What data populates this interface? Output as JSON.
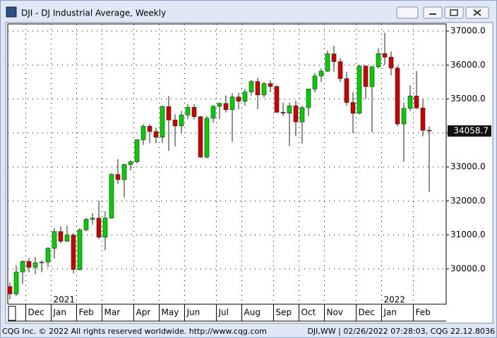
{
  "window": {
    "title": "DJI - DJ Industrial Average, Weekly",
    "footer_left": "CQG Inc. © 2022 All rights reserved worldwide. http://www.cqg.com",
    "footer_right": "DJI,WW | 02/26/2022 07:28:03, CQG 22.12.8036"
  },
  "chart_data": {
    "type": "candlestick",
    "categories": [
      null,
      null,
      null,
      "Dec",
      null,
      null,
      null,
      "Jan",
      null,
      null,
      null,
      "Feb",
      null,
      null,
      null,
      "Mar",
      null,
      null,
      null,
      null,
      "Apr",
      null,
      null,
      null,
      "May",
      null,
      null,
      null,
      "Jun",
      null,
      null,
      null,
      null,
      "Jul",
      null,
      null,
      null,
      "Aug",
      null,
      null,
      null,
      null,
      "Sep",
      null,
      null,
      null,
      "Oct",
      null,
      null,
      null,
      "Nov",
      null,
      null,
      null,
      null,
      "Dec",
      null,
      null,
      null,
      "Jan",
      null,
      null,
      null,
      null,
      "Feb",
      null,
      null
    ],
    "year_labels": [
      null,
      null,
      null,
      null,
      null,
      null,
      null,
      "2021",
      null,
      null,
      null,
      null,
      null,
      null,
      null,
      null,
      null,
      null,
      null,
      null,
      null,
      null,
      null,
      null,
      null,
      null,
      null,
      null,
      null,
      null,
      null,
      null,
      null,
      null,
      null,
      null,
      null,
      null,
      null,
      null,
      null,
      null,
      null,
      null,
      null,
      null,
      null,
      null,
      null,
      null,
      null,
      null,
      null,
      null,
      null,
      null,
      null,
      null,
      null,
      "2022",
      null,
      null,
      null,
      null,
      null,
      null,
      null
    ],
    "open": [
      29480,
      29263,
      29910,
      30218,
      30046,
      30179,
      30200,
      30606,
      31098,
      30814,
      30997,
      29983,
      31148,
      31458,
      31494,
      30932,
      31496,
      32779,
      32628,
      33072,
      33153,
      33801,
      34200,
      34043,
      33875,
      34778,
      34382,
      34208,
      34529,
      34756,
      34480,
      33290,
      34433,
      34786,
      34870,
      34687,
      35061,
      34935,
      35208,
      35515,
      35120,
      35455,
      35369,
      34608,
      34584,
      34798,
      34326,
      34746,
      35295,
      35677,
      35820,
      36328,
      36100,
      35602,
      34899,
      34580,
      35971,
      35365,
      35950,
      36338,
      36232,
      35912,
      34265,
      34725,
      35090,
      34738,
      34079
    ],
    "high": [
      29600,
      30100,
      30250,
      30320,
      30350,
      30250,
      30640,
      31200,
      31250,
      31270,
      31050,
      31200,
      31500,
      31640,
      32010,
      31700,
      32820,
      33230,
      33100,
      33200,
      33810,
      34260,
      34260,
      34160,
      34810,
      35090,
      34550,
      34650,
      34850,
      34850,
      34500,
      34500,
      34820,
      34900,
      35100,
      35170,
      35180,
      35300,
      35560,
      35630,
      35500,
      35550,
      35400,
      34900,
      34900,
      34950,
      34800,
      35300,
      35770,
      35900,
      36430,
      36570,
      36200,
      35800,
      35200,
      36000,
      36000,
      35980,
      36500,
      36952,
      36400,
      35980,
      34900,
      35400,
      35820,
      35000,
      34200
    ],
    "low": [
      29100,
      29200,
      29550,
      29900,
      29850,
      29900,
      30050,
      30300,
      30750,
      30800,
      29860,
      29950,
      31100,
      31300,
      30880,
      30550,
      31480,
      32500,
      32100,
      32900,
      33100,
      33650,
      33700,
      33700,
      33700,
      33470,
      33600,
      34000,
      34400,
      34400,
      33270,
      33250,
      34300,
      34400,
      34600,
      33740,
      34700,
      34800,
      35100,
      34700,
      35050,
      35200,
      34600,
      34500,
      33610,
      33900,
      33690,
      34500,
      35200,
      35500,
      35800,
      35800,
      35500,
      34800,
      34000,
      34550,
      35000,
      34020,
      35900,
      36000,
      35700,
      34200,
      33150,
      34650,
      34700,
      33900,
      32272
    ],
    "close": [
      29263,
      29910,
      30218,
      30046,
      30179,
      30200,
      30606,
      31098,
      30814,
      30997,
      29983,
      31148,
      31458,
      31494,
      30932,
      31496,
      32779,
      32628,
      33072,
      33153,
      33801,
      34200,
      34043,
      33875,
      34778,
      34382,
      34208,
      34529,
      34756,
      34480,
      33290,
      34433,
      34786,
      34870,
      34687,
      35061,
      34935,
      35208,
      35515,
      35120,
      35455,
      35369,
      34608,
      34584,
      34798,
      34326,
      34746,
      35295,
      35677,
      35820,
      36328,
      36100,
      35602,
      34899,
      34580,
      35971,
      35365,
      35950,
      36338,
      36232,
      35912,
      34265,
      34725,
      35090,
      34738,
      34079,
      34058.7
    ],
    "up_color": "#00d200",
    "down_color": "#d00000",
    "ylim": [
      28960,
      37210
    ],
    "yticks": [
      {
        "value": 30000,
        "label": "30000.0"
      },
      {
        "value": 31000,
        "label": "31000.0"
      },
      {
        "value": 32000,
        "label": "32000.0"
      },
      {
        "value": 33000,
        "label": "33000.0"
      },
      {
        "value": 34000,
        "label": "34000.0"
      },
      {
        "value": 35000,
        "label": "35000.0"
      },
      {
        "value": 36000,
        "label": "36000.0"
      },
      {
        "value": 37000,
        "label": "37000.0"
      }
    ],
    "grid": true
  }
}
